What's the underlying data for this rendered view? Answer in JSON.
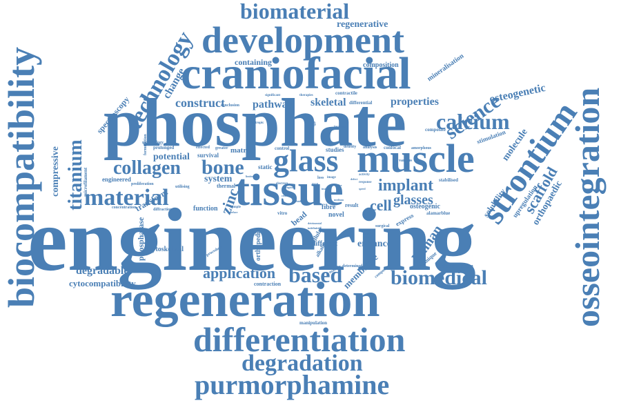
{
  "accent_color": "#4a7fb5",
  "words": {
    "engineering": "engineering",
    "phosphate": "phosphate",
    "regeneration": "regeneration",
    "craniofacial": "craniofacial",
    "development": "development",
    "tissue": "tissue",
    "glass": "glass",
    "muscle": "muscle",
    "differentiation": "differentiation",
    "biocompatibility": "biocompatibility",
    "osseointegration": "osseointegration",
    "strontium": "strontium",
    "degradation": "degradation",
    "purmorphamine": "purmorphamine",
    "biomaterial": "biomaterial",
    "bone": "bone",
    "calcium": "calcium",
    "material": "material",
    "collagen": "collagen",
    "biomedical": "biomedical",
    "technology": "technology",
    "science": "science",
    "titanium": "titanium",
    "based": "based",
    "application": "application",
    "scaffold": "scaffold",
    "implant": "implant",
    "cell": "cell",
    "glasses": "glasses",
    "construct": "construct",
    "skeletal": "skeletal",
    "pathway": "pathway",
    "properties": "properties",
    "osteogenetic": "osteogenetic",
    "human": "human",
    "enhance": "enhance",
    "degradable": "degradable",
    "cytocompatibility": "cytocompatibility",
    "membrane": "membrane",
    "zinc": "zinc",
    "change": "change",
    "compressive": "compressive",
    "potential": "potential",
    "regenerative": "regenerative",
    "containing": "containing",
    "orthopaedic": "orthopaedic",
    "molecule": "molecule",
    "spectroscopy": "spectroscopy",
    "system": "system",
    "composition": "composition",
    "mineralisation": "mineralisation",
    "cytoskeletal": "cytoskeletal",
    "different": "different",
    "osteogenic": "osteogenic",
    "novel": "novel",
    "fibre": "fibre",
    "function": "function",
    "matrix": "matrix",
    "survival": "survival",
    "stimulation": "stimulation",
    "upregulation": "upregulation",
    "solubility": "solubility",
    "transform": "transform",
    "phosphatase": "phosphatase",
    "osteoinduction": "osteoinduction",
    "contraction": "contraction",
    "manipulation": "manipulation",
    "contractile": "contractile",
    "differential": "differential",
    "conclusion": "conclusion",
    "static": "static",
    "thermal": "thermal",
    "studies": "studies",
    "confocal": "confocal",
    "amorphous": "amorphous",
    "composite": "composite",
    "alamarblue": "alamarblue",
    "stabilised": "stabilised",
    "engineered": "engineered",
    "prolonged": "prolonged",
    "effected": "effected",
    "microfilament": "microfilament",
    "proliferation": "proliferation",
    "concentration": "concentration",
    "diffraction": "diffraction",
    "result": "result",
    "orthopedic": "orthopedic",
    "alkaline": "alkaline",
    "vitro": "vitro",
    "bead": "bead",
    "utilising": "utilising",
    "formulation": "formulation",
    "morphology": "morphology",
    "express": "express",
    "technique": "technique",
    "various": "various",
    "density": "density",
    "analysis": "analysis",
    "control": "control",
    "greater": "greater",
    "determined": "determined",
    "component": "component",
    "procedure": "procedure",
    "surgical": "surgical",
    "significant": "significant",
    "therapies": "therapies",
    "advantage": "advantage",
    "increase": "increase",
    "isotropic": "isotropic",
    "response": "response",
    "activity": "activity",
    "marker": "marker",
    "loss": "loss",
    "man": "man",
    "image": "image",
    "stage": "stage",
    "barrier": "barrier",
    "general": "general",
    "sample": "sample",
    "cellular": "cellular",
    "electron": "electron",
    "detrimental": "detrimental",
    "indefinitely": "indefinitely",
    "surface": "surface",
    "cells": "cells",
    "insight": "insight",
    "differ": "differ",
    "region": "region",
    "speed": "speed",
    "defect": "defect",
    "fluid": "fluid",
    "limited": "limited",
    "medium": "medium"
  }
}
